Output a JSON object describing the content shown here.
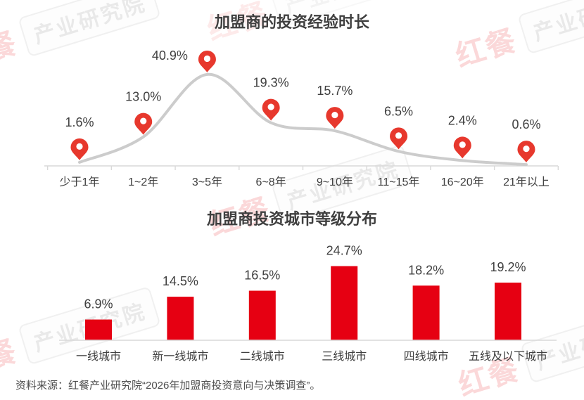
{
  "chart_data": [
    {
      "type": "line",
      "title": "加盟商的投资经验时长",
      "categories": [
        "少于1年",
        "1~2年",
        "3~5年",
        "6~8年",
        "9~10年",
        "11~15年",
        "16~20年",
        "21年以上"
      ],
      "values": [
        1.6,
        13.0,
        40.9,
        19.3,
        15.7,
        6.5,
        2.4,
        0.6
      ],
      "labels": [
        "1.6%",
        "13.0%",
        "40.9%",
        "19.3%",
        "15.7%",
        "6.5%",
        "2.4%",
        "0.6%"
      ],
      "ylim": [
        0,
        45
      ],
      "xlabel": "",
      "ylabel": "",
      "grid": false,
      "legend": "none",
      "marker": "map-pin",
      "line_color": "#cccccc",
      "marker_color": "#e7382d",
      "label_color": "#404040",
      "axis_color": "#d9d9d9"
    },
    {
      "type": "bar",
      "title": "加盟商投资城市等级分布",
      "categories": [
        "一线城市",
        "新一线城市",
        "二线城市",
        "三线城市",
        "四线城市",
        "五线及以下城市"
      ],
      "values": [
        6.9,
        14.5,
        16.5,
        24.7,
        18.2,
        19.2
      ],
      "labels": [
        "6.9%",
        "14.5%",
        "16.5%",
        "24.7%",
        "18.2%",
        "19.2%"
      ],
      "ylim": [
        0,
        28
      ],
      "xlabel": "",
      "ylabel": "",
      "grid": false,
      "legend": "none",
      "bar_color": "#e60012",
      "label_color": "#404040",
      "axis_color": "#d9d9d9"
    }
  ],
  "source_note": "资料来源：红餐产业研究院“2026年加盟商投资意向与决策调查”。",
  "watermark": {
    "brand": "红餐",
    "name": "产业研究院",
    "brand_color": "#e60012"
  },
  "colors": {
    "title": "#3f3f3f",
    "label": "#404040",
    "category": "#404040",
    "axis": "#d9d9d9",
    "source": "#4d4d4d"
  }
}
